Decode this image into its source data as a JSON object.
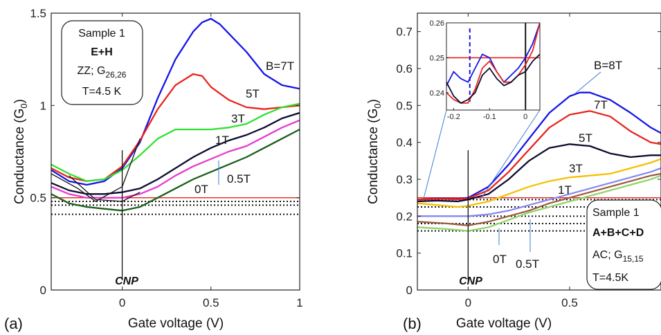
{
  "chart_data": [
    {
      "panel": "(a)",
      "type": "line",
      "xlabel": "Gate voltage (V)",
      "ylabel": "Conductance (G",
      "ylabel_sub": "0",
      "ylabel_end": ")",
      "xlim": [
        -0.4,
        1.0
      ],
      "ylim": [
        0,
        1.5
      ],
      "xticks": [
        0,
        0.5,
        1
      ],
      "xtick_labels": [
        "0",
        "0.5",
        "1"
      ],
      "yticks": [
        0,
        0.5,
        1,
        1.5
      ],
      "ytick_labels": [
        "0",
        "0.5",
        "1",
        "1.5"
      ],
      "info_box": {
        "sample": "Sample 1",
        "regions": "E+H",
        "config_prefix": "ZZ; G",
        "config_sub": "26,26",
        "temperature": "T=4.5 K"
      },
      "cnp_label": "CNP",
      "cnp_x": 0,
      "reference_lines": [
        {
          "y": 0.5,
          "color": "#e8231b",
          "style": "solid"
        },
        {
          "y": 0.48,
          "color": "#111111",
          "style": "dotted"
        },
        {
          "y": 0.46,
          "color": "#111111",
          "style": "dotted"
        },
        {
          "y": 0.41,
          "color": "#111111",
          "style": "dotted"
        }
      ],
      "series": [
        {
          "name": "B=7T",
          "color": "#1414e8",
          "x": [
            -0.4,
            -0.3,
            -0.2,
            -0.1,
            0,
            0.1,
            0.2,
            0.3,
            0.4,
            0.45,
            0.5,
            0.55,
            0.6,
            0.7,
            0.8,
            0.9,
            1.0
          ],
          "y": [
            0.65,
            0.59,
            0.57,
            0.59,
            0.66,
            0.8,
            1.04,
            1.25,
            1.4,
            1.45,
            1.47,
            1.44,
            1.39,
            1.29,
            1.17,
            1.11,
            1.09
          ]
        },
        {
          "name": "5T",
          "color": "#e8231b",
          "x": [
            -0.4,
            -0.3,
            -0.2,
            -0.1,
            0,
            0.1,
            0.2,
            0.3,
            0.4,
            0.45,
            0.5,
            0.6,
            0.7,
            0.8,
            0.9,
            1.0
          ],
          "y": [
            0.66,
            0.61,
            0.59,
            0.6,
            0.67,
            0.81,
            0.98,
            1.11,
            1.17,
            1.16,
            1.1,
            1.03,
            0.99,
            0.98,
            0.99,
            1.0
          ]
        },
        {
          "name": "3T",
          "color": "#2ee12e",
          "x": [
            -0.4,
            -0.3,
            -0.2,
            -0.1,
            0,
            0.1,
            0.2,
            0.3,
            0.4,
            0.5,
            0.6,
            0.7,
            0.8,
            0.9,
            1.0
          ],
          "y": [
            0.68,
            0.63,
            0.59,
            0.6,
            0.65,
            0.73,
            0.82,
            0.87,
            0.87,
            0.87,
            0.88,
            0.9,
            0.95,
            0.99,
            1.01
          ]
        },
        {
          "name": "1T",
          "color": "#0b0b2e",
          "x": [
            -0.4,
            -0.3,
            -0.2,
            -0.1,
            0,
            0.1,
            0.2,
            0.3,
            0.4,
            0.5,
            0.6,
            0.7,
            0.8,
            0.9,
            1.0
          ],
          "y": [
            0.58,
            0.54,
            0.52,
            0.52,
            0.53,
            0.55,
            0.6,
            0.66,
            0.72,
            0.77,
            0.81,
            0.84,
            0.88,
            0.93,
            0.96
          ]
        },
        {
          "name": "0.5T",
          "color": "#e63bd0",
          "x": [
            -0.4,
            -0.3,
            -0.2,
            -0.1,
            0,
            0.1,
            0.2,
            0.3,
            0.4,
            0.5,
            0.6,
            0.7,
            0.8,
            0.9,
            1.0
          ],
          "y": [
            0.56,
            0.52,
            0.5,
            0.5,
            0.5,
            0.52,
            0.56,
            0.62,
            0.67,
            0.71,
            0.75,
            0.78,
            0.83,
            0.88,
            0.92
          ]
        },
        {
          "name": "0T",
          "color": "#1a5e1a",
          "x": [
            -0.4,
            -0.3,
            -0.2,
            -0.1,
            0,
            0.1,
            0.2,
            0.3,
            0.4,
            0.5,
            0.6,
            0.7,
            0.8,
            0.9,
            1.0
          ],
          "y": [
            0.52,
            0.47,
            0.45,
            0.44,
            0.43,
            0.45,
            0.5,
            0.55,
            0.6,
            0.64,
            0.68,
            0.72,
            0.77,
            0.82,
            0.87
          ]
        }
      ],
      "extra_lines": [
        {
          "color": "#111111",
          "x": [
            -0.4,
            -0.25,
            -0.15,
            0,
            0.1
          ],
          "y": [
            0.63,
            0.55,
            0.48,
            0.56,
            0.82
          ]
        },
        {
          "color": "#111111",
          "x": [
            -0.3,
            -0.15,
            0,
            0.1
          ],
          "y": [
            0.62,
            0.49,
            0.48,
            0.53
          ]
        }
      ]
    },
    {
      "panel": "(b)",
      "type": "line",
      "xlabel": "Gate voltage (V)",
      "ylabel": "Conductance (G",
      "ylabel_sub": "0",
      "ylabel_end": ")",
      "xlim": [
        -0.25,
        0.95
      ],
      "ylim": [
        0,
        0.75
      ],
      "xticks": [
        0,
        0.5
      ],
      "xtick_labels": [
        "0",
        "0.5"
      ],
      "yticks": [
        0,
        0.1,
        0.2,
        0.3,
        0.4,
        0.5,
        0.6,
        0.7
      ],
      "ytick_labels": [
        "0",
        "0.1",
        "0.2",
        "0.3",
        "0.4",
        "0.5",
        "0.6",
        "0.7"
      ],
      "info_box": {
        "sample": "Sample 1",
        "regions": "A+B+C+D",
        "config_prefix": "AC; G",
        "config_sub": "15,15",
        "temperature": "T=4.5K"
      },
      "cnp_label": "CNP",
      "cnp_x": 0,
      "reference_lines": [
        {
          "y": 0.25,
          "color": "#e8231b",
          "style": "solid"
        },
        {
          "y": 0.245,
          "color": "#111111",
          "style": "dotted"
        },
        {
          "y": 0.225,
          "color": "#111111",
          "style": "dotted"
        },
        {
          "y": 0.2,
          "color": "#111111",
          "style": "dotted"
        },
        {
          "y": 0.18,
          "color": "#111111",
          "style": "dotted"
        },
        {
          "y": 0.16,
          "color": "#111111",
          "style": "dotted"
        }
      ],
      "series": [
        {
          "name": "B=8T",
          "color": "#1414e8",
          "x": [
            -0.25,
            -0.15,
            -0.05,
            0,
            0.1,
            0.2,
            0.3,
            0.4,
            0.5,
            0.55,
            0.6,
            0.7,
            0.8,
            0.9,
            0.95
          ],
          "y": [
            0.245,
            0.248,
            0.247,
            0.25,
            0.28,
            0.34,
            0.41,
            0.48,
            0.525,
            0.535,
            0.535,
            0.515,
            0.48,
            0.44,
            0.425
          ]
        },
        {
          "name": "7T",
          "color": "#e8231b",
          "x": [
            -0.25,
            -0.15,
            -0.05,
            0,
            0.1,
            0.2,
            0.3,
            0.4,
            0.5,
            0.6,
            0.7,
            0.8,
            0.9,
            0.95
          ],
          "y": [
            0.245,
            0.247,
            0.246,
            0.248,
            0.27,
            0.32,
            0.38,
            0.44,
            0.475,
            0.485,
            0.47,
            0.43,
            0.4,
            0.395
          ]
        },
        {
          "name": "5T",
          "color": "#0b0b2e",
          "x": [
            -0.25,
            -0.15,
            -0.05,
            0,
            0.1,
            0.2,
            0.3,
            0.4,
            0.5,
            0.6,
            0.7,
            0.8,
            0.9,
            0.95
          ],
          "y": [
            0.24,
            0.242,
            0.24,
            0.245,
            0.26,
            0.3,
            0.35,
            0.385,
            0.395,
            0.39,
            0.37,
            0.36,
            0.365,
            0.365
          ]
        },
        {
          "name": "3T",
          "color": "#f5c000",
          "x": [
            -0.25,
            -0.15,
            -0.05,
            0,
            0.1,
            0.2,
            0.3,
            0.4,
            0.5,
            0.6,
            0.7,
            0.8,
            0.9,
            0.95
          ],
          "y": [
            0.235,
            0.23,
            0.225,
            0.228,
            0.24,
            0.26,
            0.28,
            0.295,
            0.305,
            0.31,
            0.315,
            0.33,
            0.345,
            0.355
          ]
        },
        {
          "name": "1T",
          "color": "#8888ee",
          "x": [
            -0.25,
            -0.1,
            0,
            0.1,
            0.2,
            0.3,
            0.4,
            0.5,
            0.6,
            0.7,
            0.8,
            0.9,
            0.95
          ],
          "y": [
            0.2,
            0.2,
            0.2,
            0.205,
            0.215,
            0.23,
            0.245,
            0.26,
            0.275,
            0.29,
            0.305,
            0.32,
            0.33
          ]
        },
        {
          "name": "0.5T",
          "color": "#9c5a3c",
          "x": [
            -0.25,
            -0.1,
            0,
            0.1,
            0.2,
            0.3,
            0.4,
            0.5,
            0.6,
            0.7,
            0.8,
            0.9,
            0.95
          ],
          "y": [
            0.185,
            0.18,
            0.175,
            0.185,
            0.2,
            0.215,
            0.235,
            0.25,
            0.265,
            0.28,
            0.295,
            0.31,
            0.315
          ]
        },
        {
          "name": "0T",
          "color": "#8fd46a",
          "x": [
            -0.25,
            -0.1,
            0,
            0.1,
            0.2,
            0.3,
            0.4,
            0.5,
            0.6,
            0.7,
            0.8,
            0.9,
            0.95
          ],
          "y": [
            0.17,
            0.165,
            0.16,
            0.17,
            0.19,
            0.21,
            0.225,
            0.24,
            0.255,
            0.27,
            0.285,
            0.3,
            0.31
          ]
        }
      ],
      "inset": {
        "xlim": [
          -0.22,
          0.04
        ],
        "ylim": [
          0.235,
          0.26
        ],
        "xticks": [
          -0.2,
          -0.1,
          0
        ],
        "xtick_labels": [
          "-0.2",
          "-0.1",
          "0"
        ],
        "yticks": [
          0.24,
          0.25,
          0.26
        ],
        "ytick_labels": [
          "0.24",
          "0.25",
          "0.26"
        ],
        "red_line_y": 0.25,
        "dashed_blue_x": -0.155,
        "solid_black_x": 0,
        "series": [
          {
            "color": "#1414e8",
            "x": [
              -0.22,
              -0.2,
              -0.18,
              -0.16,
              -0.14,
              -0.12,
              -0.1,
              -0.08,
              -0.06,
              -0.04,
              -0.02,
              0,
              0.02,
              0.04
            ],
            "y": [
              0.242,
              0.246,
              0.244,
              0.243,
              0.247,
              0.251,
              0.25,
              0.246,
              0.243,
              0.245,
              0.247,
              0.25,
              0.254,
              0.26
            ]
          },
          {
            "color": "#e8231b",
            "x": [
              -0.22,
              -0.2,
              -0.18,
              -0.16,
              -0.14,
              -0.12,
              -0.1,
              -0.08,
              -0.06,
              -0.04,
              -0.02,
              0,
              0.02,
              0.04
            ],
            "y": [
              0.24,
              0.238,
              0.237,
              0.237,
              0.241,
              0.247,
              0.249,
              0.246,
              0.243,
              0.243,
              0.245,
              0.248,
              0.252,
              0.26
            ]
          },
          {
            "color": "#0b0b2e",
            "x": [
              -0.22,
              -0.2,
              -0.18,
              -0.16,
              -0.14,
              -0.12,
              -0.1,
              -0.08,
              -0.06,
              -0.04,
              -0.02,
              0,
              0.02,
              0.04
            ],
            "y": [
              0.243,
              0.239,
              0.237,
              0.238,
              0.24,
              0.245,
              0.247,
              0.244,
              0.242,
              0.243,
              0.245,
              0.246,
              0.249,
              0.251
            ]
          }
        ]
      }
    }
  ]
}
